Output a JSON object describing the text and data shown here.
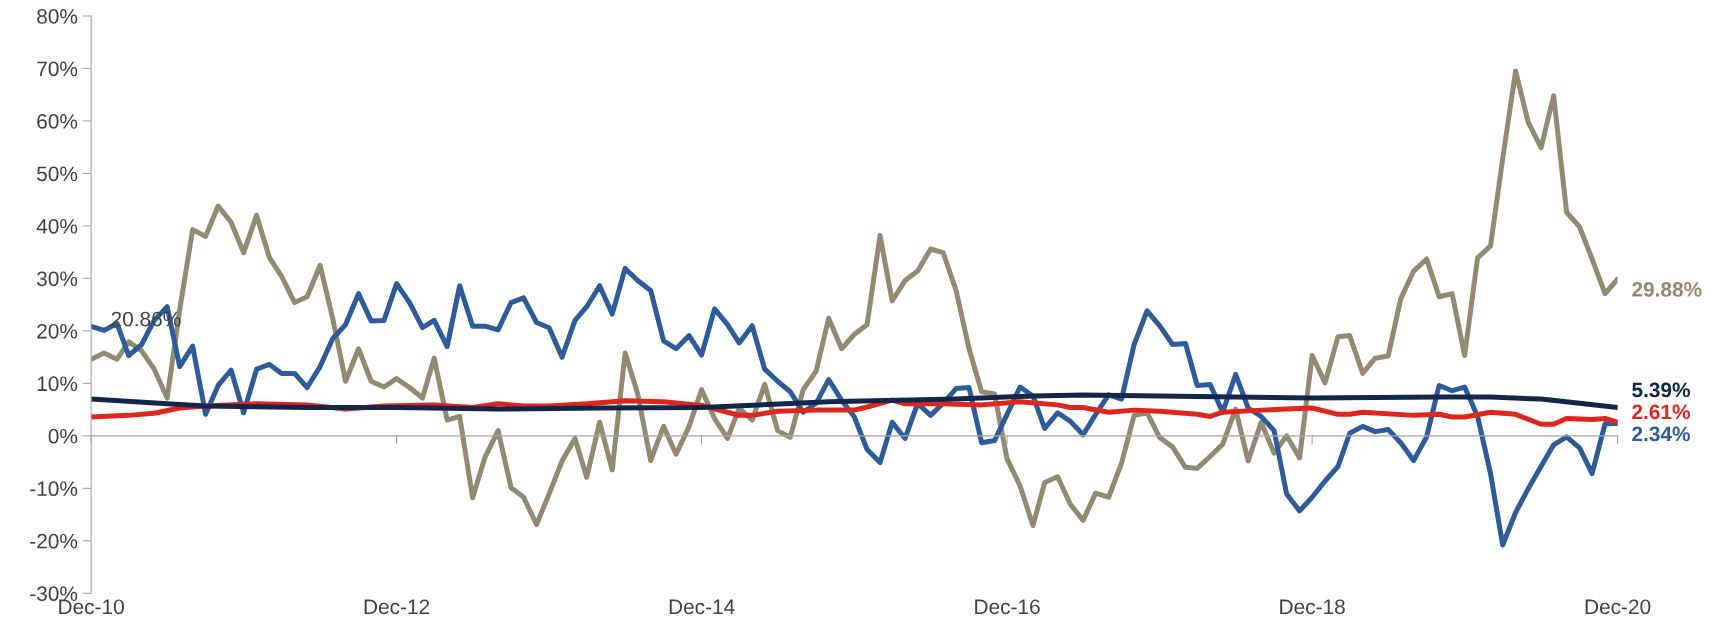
{
  "chart_data": {
    "type": "line",
    "x": [
      "2010-12",
      "2011-01",
      "2011-02",
      "2011-03",
      "2011-04",
      "2011-05",
      "2011-06",
      "2011-07",
      "2011-08",
      "2011-09",
      "2011-10",
      "2011-11",
      "2011-12",
      "2012-01",
      "2012-02",
      "2012-03",
      "2012-04",
      "2012-05",
      "2012-06",
      "2012-07",
      "2012-08",
      "2012-09",
      "2012-10",
      "2012-11",
      "2012-12",
      "2013-01",
      "2013-02",
      "2013-03",
      "2013-04",
      "2013-05",
      "2013-06",
      "2013-07",
      "2013-08",
      "2013-09",
      "2013-10",
      "2013-11",
      "2013-12",
      "2014-01",
      "2014-02",
      "2014-03",
      "2014-04",
      "2014-05",
      "2014-06",
      "2014-07",
      "2014-08",
      "2014-09",
      "2014-10",
      "2014-11",
      "2014-12",
      "2015-01",
      "2015-02",
      "2015-03",
      "2015-04",
      "2015-05",
      "2015-06",
      "2015-07",
      "2015-08",
      "2015-09",
      "2015-10",
      "2015-11",
      "2015-12",
      "2016-01",
      "2016-02",
      "2016-03",
      "2016-04",
      "2016-05",
      "2016-06",
      "2016-07",
      "2016-08",
      "2016-09",
      "2016-10",
      "2016-11",
      "2016-12",
      "2017-01",
      "2017-02",
      "2017-03",
      "2017-04",
      "2017-05",
      "2017-06",
      "2017-07",
      "2017-08",
      "2017-09",
      "2017-10",
      "2017-11",
      "2017-12",
      "2018-01",
      "2018-02",
      "2018-03",
      "2018-04",
      "2018-05",
      "2018-06",
      "2018-07",
      "2018-08",
      "2018-09",
      "2018-10",
      "2018-11",
      "2018-12",
      "2019-01",
      "2019-02",
      "2019-03",
      "2019-04",
      "2019-05",
      "2019-06",
      "2019-07",
      "2019-08",
      "2019-09",
      "2019-10",
      "2019-11",
      "2019-12",
      "2020-01",
      "2020-02",
      "2020-03",
      "2020-04",
      "2020-05",
      "2020-06",
      "2020-07",
      "2020-08",
      "2020-09",
      "2020-10",
      "2020-11",
      "2020-12"
    ],
    "series": [
      {
        "color": "#918b74",
        "values": [
          14.6,
          15.8,
          14.6,
          17.9,
          16.2,
          12.7,
          7.2,
          24,
          39.3,
          38,
          43.8,
          40.7,
          34.9,
          42,
          33.9,
          30.4,
          25.4,
          26.5,
          32.5,
          22.4,
          10.4,
          16.6,
          10.4,
          9.3,
          10.9,
          9.2,
          7.2,
          14.8,
          3.0,
          3.7,
          -11.8,
          -4.0,
          1.0,
          -9.9,
          -11.7,
          -16.9,
          -11.1,
          -4.8,
          -0.5,
          -7.9,
          2.6,
          -6.5,
          15.8,
          8.0,
          -4.7,
          1.8,
          -3.5,
          1.8,
          8.8,
          3.3,
          -0.5,
          5.3,
          3.0,
          9.8,
          1.0,
          -0.3,
          8.8,
          12.3,
          22.4,
          16.6,
          19.3,
          21.2,
          38.2,
          25.7,
          29.6,
          31.4,
          35.6,
          34.9,
          27.7,
          16.6,
          8.4,
          8.0,
          -4.4,
          -9.5,
          -17.1,
          -8.9,
          -7.8,
          -13.0,
          -16.1,
          -10.9,
          -11.7,
          -5.2,
          3.9,
          4.4,
          -0.3,
          -2.1,
          -6.0,
          -6.2,
          -3.9,
          -1.6,
          5.1,
          -4.8,
          2.6,
          -3.3,
          0,
          -4.2,
          15.3,
          10.1,
          18.9,
          19.1,
          11.9,
          14.8,
          15.2,
          26.1,
          31.4,
          33.7,
          26.5,
          27.1,
          15.3,
          33.9,
          36.2,
          52.8,
          69.5,
          59.8,
          54.9,
          64.8,
          42.6,
          39.8,
          33.7,
          27.1,
          29.88
        ],
        "value_labels": [
          null,
          null,
          null,
          null,
          null,
          null,
          null,
          null,
          null,
          null,
          null,
          null,
          null,
          null,
          null,
          null,
          null,
          null,
          null,
          null,
          null,
          null,
          null,
          null,
          null,
          null,
          null,
          null,
          null,
          null,
          null,
          null,
          null,
          null,
          null,
          null,
          null,
          null,
          null,
          null,
          null,
          null,
          null,
          null,
          null,
          null,
          null,
          null,
          null,
          null,
          null,
          null,
          null,
          null,
          null,
          null,
          null,
          null,
          null,
          null,
          null,
          null,
          null,
          null,
          null,
          null,
          null,
          null,
          null,
          null,
          null,
          null,
          null,
          null,
          null,
          null,
          null,
          null,
          null,
          null,
          null,
          null,
          null,
          null,
          null,
          null,
          null,
          null,
          null,
          null,
          null,
          null,
          null,
          null,
          null,
          null,
          null,
          null,
          null,
          null,
          null,
          null,
          null,
          null,
          null,
          null,
          null,
          null,
          null,
          null,
          null,
          null,
          null,
          null,
          null,
          null,
          null,
          null,
          null,
          null,
          "29.88%"
        ]
      },
      {
        "color": "#2e5c9a",
        "values": [
          20.86,
          20.1,
          21.4,
          15.3,
          17.4,
          22.0,
          24.6,
          13.2,
          17.1,
          4.1,
          9.6,
          12.5,
          4.4,
          12.7,
          13.6,
          11.9,
          11.9,
          9.2,
          13.2,
          18.5,
          21.2,
          27.1,
          21.9,
          22.0,
          29.0,
          25.4,
          20.6,
          22.0,
          17.0,
          28.6,
          20.9,
          20.9,
          20.2,
          25.4,
          26.3,
          21.6,
          20.6,
          15.0,
          22.0,
          24.6,
          28.6,
          23.2,
          31.9,
          29.6,
          27.7,
          18.1,
          16.6,
          19.1,
          15.4,
          24.2,
          21.2,
          17.7,
          21.0,
          12.7,
          10.4,
          8.4,
          4.5,
          6.2,
          10.7,
          6.8,
          3.7,
          -2.6,
          -5.1,
          2.6,
          -0.5,
          6.2,
          3.9,
          6.2,
          9.0,
          9.2,
          -1.3,
          -0.9,
          4.1,
          9.3,
          7.6,
          1.4,
          4.4,
          2.8,
          0.2,
          4.1,
          7.8,
          7.0,
          17.4,
          23.8,
          21.0,
          17.4,
          17.6,
          9.6,
          9.8,
          4.5,
          11.7,
          5.3,
          3.7,
          1.0,
          -11.1,
          -14.3,
          -11.7,
          -8.6,
          -5.8,
          0.5,
          1.8,
          0.8,
          1.2,
          -1.3,
          -4.7,
          -0.2,
          9.6,
          8.6,
          9.3,
          3.7,
          -7.2,
          -20.8,
          -14.6,
          -10.1,
          -5.8,
          -1.7,
          -0.2,
          -2.3,
          -7.2,
          2.3,
          2.34
        ],
        "value_labels": [
          null,
          null,
          null,
          null,
          null,
          null,
          null,
          null,
          null,
          null,
          null,
          null,
          null,
          null,
          null,
          null,
          null,
          null,
          null,
          null,
          null,
          null,
          null,
          null,
          null,
          null,
          null,
          null,
          null,
          null,
          null,
          null,
          null,
          null,
          null,
          null,
          null,
          null,
          null,
          null,
          null,
          null,
          null,
          null,
          null,
          null,
          null,
          null,
          null,
          null,
          null,
          null,
          null,
          null,
          null,
          null,
          null,
          null,
          null,
          null,
          null,
          null,
          null,
          null,
          null,
          null,
          null,
          null,
          null,
          null,
          null,
          null,
          null,
          null,
          null,
          null,
          null,
          null,
          null,
          null,
          null,
          null,
          null,
          null,
          null,
          null,
          null,
          null,
          null,
          null,
          null,
          null,
          null,
          null,
          null,
          null,
          null,
          null,
          null,
          null,
          null,
          null,
          null,
          null,
          null,
          null,
          null,
          null,
          null,
          null,
          null,
          null,
          null,
          null,
          null,
          null,
          null,
          null,
          null,
          null,
          "2.34%"
        ]
      },
      {
        "color": "#e0261c",
        "x": [
          "2010-12",
          "2011-03",
          "2011-05",
          "2011-07",
          "2011-09",
          "2012-01",
          "2012-05",
          "2012-08",
          "2012-11",
          "2013-03",
          "2013-06",
          "2013-08",
          "2013-10",
          "2013-12",
          "2014-03",
          "2014-06",
          "2014-09",
          "2014-12",
          "2015-02",
          "2015-03",
          "2015-04",
          "2015-06",
          "2015-09",
          "2015-12",
          "2016-01",
          "2016-03",
          "2016-04",
          "2016-07",
          "2016-10",
          "2017-01",
          "2017-04",
          "2017-05",
          "2017-06",
          "2017-08",
          "2017-10",
          "2017-12",
          "2018-03",
          "2018-04",
          "2018-05",
          "2018-08",
          "2018-10",
          "2018-12",
          "2019-02",
          "2019-03",
          "2019-04",
          "2019-08",
          "2019-10",
          "2019-11",
          "2019-12",
          "2020-02",
          "2020-04",
          "2020-06",
          "2020-07",
          "2020-08",
          "2020-10",
          "2020-11",
          "2020-12"
        ],
        "values": [
          3.6,
          3.9,
          4.3,
          5.3,
          5.7,
          6.1,
          5.9,
          5.1,
          5.7,
          5.9,
          5.4,
          6.1,
          5.7,
          5.7,
          6.1,
          6.7,
          6.5,
          5.8,
          4.5,
          3.9,
          3.9,
          4.7,
          4.9,
          4.9,
          5.5,
          6.8,
          6.1,
          6.1,
          5.9,
          6.5,
          5.9,
          5.4,
          5.4,
          4.5,
          4.9,
          4.7,
          4.1,
          3.7,
          4.5,
          4.9,
          5.1,
          5.3,
          4.1,
          4.1,
          4.5,
          3.9,
          4.1,
          3.6,
          3.6,
          4.5,
          4.1,
          2.2,
          2.2,
          3.3,
          3.1,
          3.3,
          2.61
        ],
        "value_labels": [
          null,
          null,
          null,
          null,
          null,
          null,
          null,
          null,
          null,
          null,
          null,
          null,
          null,
          null,
          null,
          null,
          null,
          null,
          null,
          null,
          null,
          null,
          null,
          null,
          null,
          null,
          null,
          null,
          null,
          null,
          null,
          null,
          null,
          null,
          null,
          null,
          null,
          null,
          null,
          null,
          null,
          null,
          null,
          null,
          null,
          null,
          null,
          null,
          null,
          null,
          null,
          null,
          null,
          null,
          null,
          null,
          "2.61%"
        ]
      },
      {
        "color": "#13264a",
        "x": [
          "2010-12",
          "2011-06",
          "2011-09",
          "2012-05",
          "2012-12",
          "2013-08",
          "2014-04",
          "2014-12",
          "2015-10",
          "2016-08",
          "2017-02",
          "2017-06",
          "2017-12",
          "2018-12",
          "2019-10",
          "2020-02",
          "2020-06",
          "2020-09",
          "2020-12"
        ],
        "values": [
          7.0,
          6.1,
          5.7,
          5.4,
          5.4,
          5.1,
          5.3,
          5.4,
          6.5,
          7.0,
          7.6,
          7.8,
          7.6,
          7.2,
          7.4,
          7.4,
          7.0,
          6.2,
          5.39
        ],
        "value_labels": [
          null,
          null,
          null,
          null,
          null,
          null,
          null,
          null,
          null,
          null,
          null,
          null,
          null,
          null,
          null,
          null,
          null,
          null,
          "5.39%"
        ]
      }
    ],
    "annotations": [
      {
        "text": "20.86%",
        "x": "2010-12",
        "y": 20.86
      }
    ],
    "ylim": [
      -30,
      80
    ],
    "yticks": [
      {
        "value": -30,
        "label": "-30%"
      },
      {
        "value": -20,
        "label": "-20%"
      },
      {
        "value": -10,
        "label": "-10%"
      },
      {
        "value": 0,
        "label": "0%"
      },
      {
        "value": 10,
        "label": "10%"
      },
      {
        "value": 20,
        "label": "20%"
      },
      {
        "value": 30,
        "label": "30%"
      },
      {
        "value": 40,
        "label": "40%"
      },
      {
        "value": 50,
        "label": "50%"
      },
      {
        "value": 60,
        "label": "60%"
      },
      {
        "value": 70,
        "label": "70%"
      },
      {
        "value": 80,
        "label": "80%"
      }
    ],
    "xlim": [
      "2010-12",
      "2020-12"
    ],
    "xticks": [
      {
        "value": "2010-12",
        "label": "Dec-10"
      },
      {
        "value": "2012-12",
        "label": "Dec-12"
      },
      {
        "value": "2014-12",
        "label": "Dec-14"
      },
      {
        "value": "2016-12",
        "label": "Dec-16"
      },
      {
        "value": "2018-12",
        "label": "Dec-18"
      },
      {
        "value": "2020-12",
        "label": "Dec-20"
      }
    ],
    "marker": "none",
    "line_style": "solid"
  }
}
